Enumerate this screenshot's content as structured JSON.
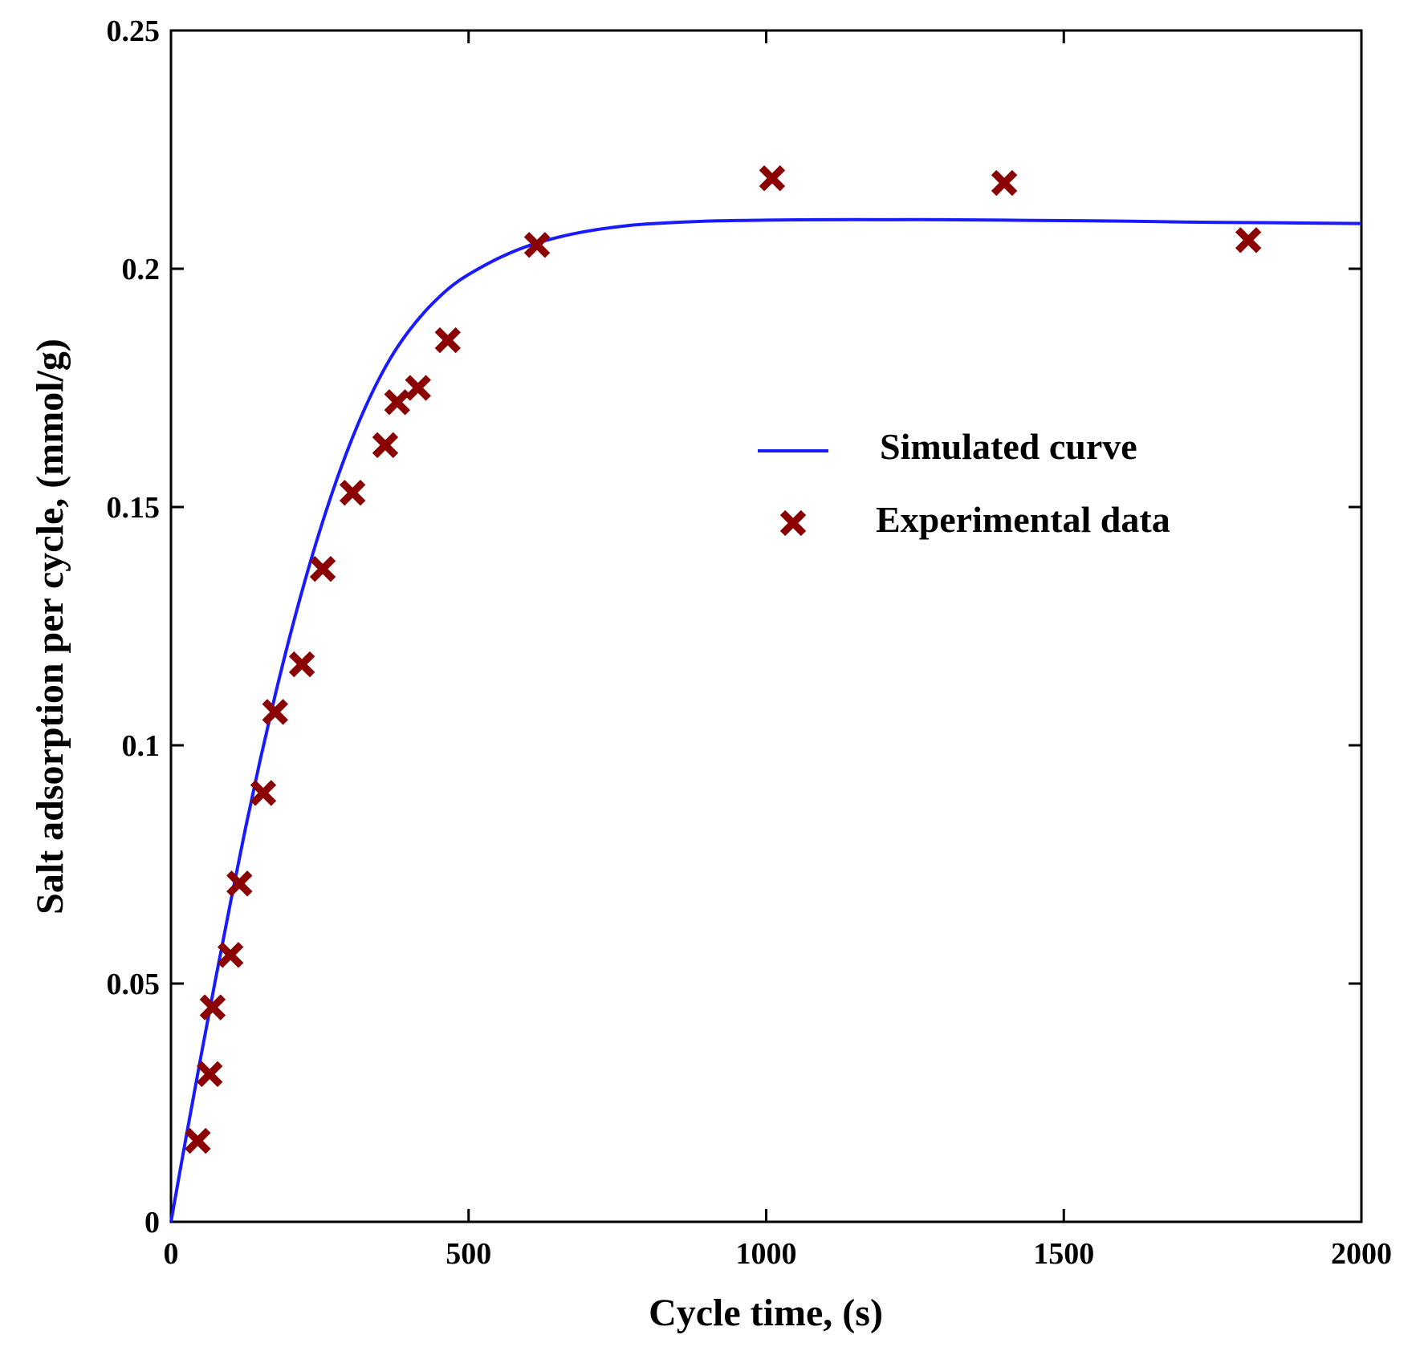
{
  "colors": {
    "simulated": "#1a1aff",
    "experimental": "#8b0000",
    "axes": "#000000"
  },
  "chart_data": {
    "type": "scatter",
    "title": "",
    "xlabel": "Cycle time, (s)",
    "ylabel": "Salt adsorption per cycle, (mmol/g)",
    "xlim": [
      0,
      2000
    ],
    "ylim": [
      0,
      0.25
    ],
    "xticks": [
      0,
      500,
      1000,
      1500,
      2000
    ],
    "xtick_labels": [
      "0",
      "500",
      "1000",
      "1500",
      "2000"
    ],
    "yticks": [
      0,
      0.05,
      0.1,
      0.15,
      0.2,
      0.25
    ],
    "ytick_labels": [
      "0",
      "0.05",
      "0.1",
      "0.15",
      "0.2",
      "0.25"
    ],
    "grid": false,
    "legend_position": "center-right",
    "series": [
      {
        "name": "Simulated curve",
        "kind": "line",
        "color": "#1a1aff",
        "x": [
          0,
          25,
          50,
          75,
          100,
          125,
          150,
          175,
          200,
          225,
          250,
          275,
          300,
          325,
          350,
          375,
          400,
          425,
          450,
          475,
          500,
          550,
          600,
          650,
          700,
          750,
          800,
          900,
          1000,
          1100,
          1200,
          1300,
          1400,
          1500,
          1600,
          1700,
          1800,
          1900,
          2000
        ],
        "y": [
          0,
          0.0175,
          0.0345,
          0.051,
          0.067,
          0.0825,
          0.097,
          0.1105,
          0.123,
          0.1345,
          0.145,
          0.1545,
          0.163,
          0.1705,
          0.177,
          0.1825,
          0.187,
          0.1908,
          0.194,
          0.1967,
          0.1988,
          0.2022,
          0.2048,
          0.2066,
          0.2079,
          0.2088,
          0.2094,
          0.21,
          0.2102,
          0.2103,
          0.2103,
          0.2103,
          0.2102,
          0.2101,
          0.21,
          0.2098,
          0.2097,
          0.2096,
          0.2095
        ]
      },
      {
        "name": "Experimental data",
        "kind": "scatter",
        "marker": "x",
        "color": "#8b0000",
        "x": [
          45,
          65,
          70,
          100,
          115,
          155,
          175,
          220,
          255,
          305,
          360,
          380,
          415,
          465,
          615,
          1010,
          1400,
          1810
        ],
        "y": [
          0.017,
          0.031,
          0.045,
          0.056,
          0.071,
          0.09,
          0.107,
          0.117,
          0.137,
          0.153,
          0.163,
          0.172,
          0.175,
          0.185,
          0.205,
          0.219,
          0.218,
          0.206
        ]
      }
    ]
  }
}
